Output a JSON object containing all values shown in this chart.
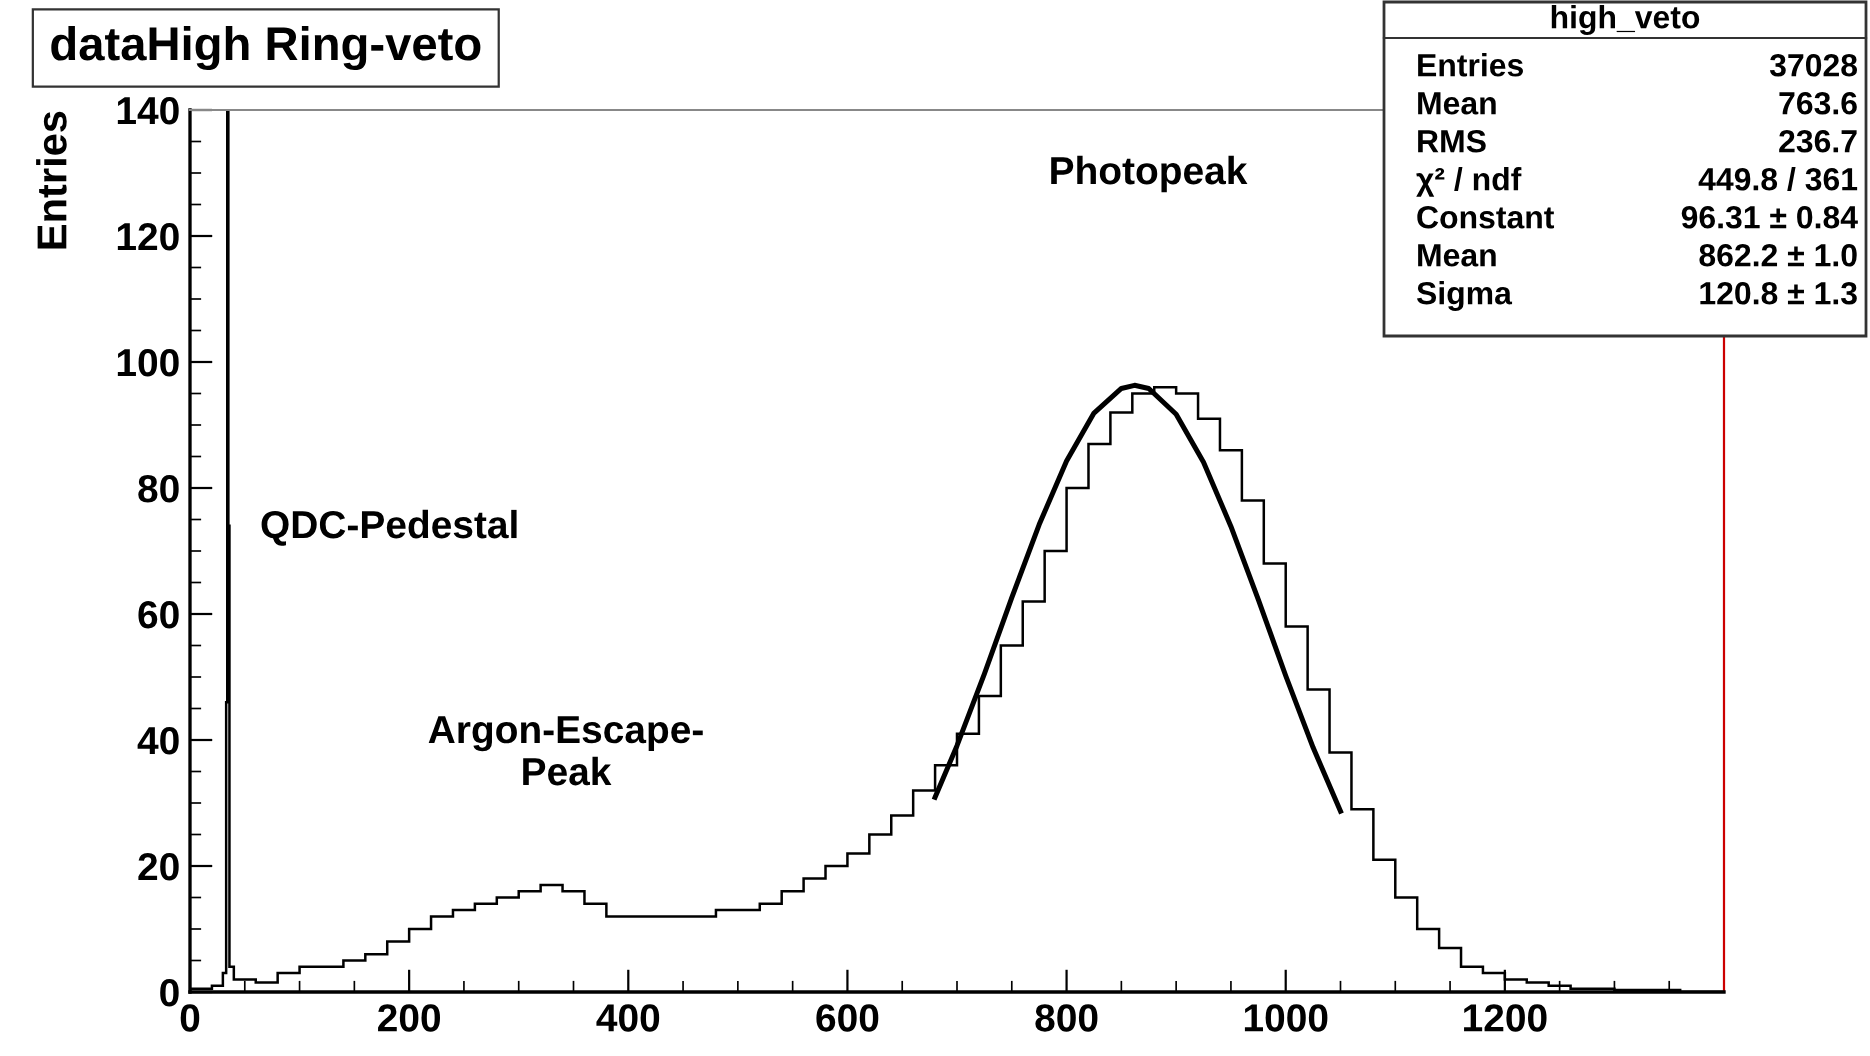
{
  "chart_data": {
    "type": "histogram",
    "title": "dataHigh Ring-veto",
    "ylabel": "Entries",
    "series": [
      {
        "color": "#000000",
        "bins": [
          0,
          20,
          30,
          33,
          34,
          35,
          36,
          40,
          60,
          80,
          100,
          120,
          140,
          160,
          180,
          200,
          220,
          240,
          260,
          280,
          300,
          320,
          340,
          360,
          380,
          400,
          420,
          440,
          460,
          480,
          500,
          520,
          540,
          560,
          580,
          600,
          620,
          640,
          660,
          680,
          700,
          720,
          740,
          760,
          780,
          800,
          820,
          840,
          860,
          880,
          900,
          920,
          940,
          960,
          980,
          1000,
          1020,
          1040,
          1060,
          1080,
          1100,
          1120,
          1140,
          1160,
          1180,
          1200,
          1220,
          1240,
          1260,
          1280,
          1300,
          1320,
          1360,
          1400
        ],
        "values": [
          0.5,
          1,
          3,
          46,
          140,
          74,
          4,
          2,
          1.5,
          3,
          4,
          4,
          5,
          6,
          8,
          10,
          12,
          13,
          14,
          15,
          16,
          17,
          16,
          14,
          12,
          12,
          12,
          12,
          12,
          13,
          13,
          14,
          16,
          18,
          20,
          22,
          25,
          28,
          32,
          36,
          41,
          47,
          55,
          62,
          70,
          80,
          87,
          92,
          95,
          96,
          95,
          91,
          86,
          78,
          68,
          58,
          48,
          38,
          29,
          21,
          15,
          10,
          7,
          4,
          3,
          2,
          1.5,
          1,
          0.5,
          0.5,
          0.3,
          0.3,
          0
        ]
      },
      {
        "type": "line",
        "color": "#000000",
        "x": [
          680,
          700,
          725,
          750,
          775,
          800,
          825,
          850,
          862,
          875,
          900,
          925,
          950,
          975,
          1000,
          1025,
          1050
        ],
        "values": [
          30.9,
          39.1,
          50.5,
          62.6,
          74.2,
          84.3,
          91.9,
          95.8,
          96.3,
          95.8,
          91.7,
          84.1,
          73.9,
          62.3,
          50.2,
          38.8,
          28.7
        ]
      }
    ],
    "xlim": [
      0,
      1400
    ],
    "ylim": [
      0,
      140
    ],
    "xticks": [
      0,
      200,
      400,
      600,
      800,
      1000,
      1200
    ],
    "yticks": [
      0,
      20,
      40,
      60,
      80,
      100,
      120,
      140
    ],
    "grid": false,
    "annotations": [
      "QDC-Pedestal",
      "Argon-Escape-\nPeak",
      "Photopeak",
      "high_veto",
      "Entries\t37028",
      "Mean\t763.6",
      "RMS\t236.7",
      "χ² / ndf\t449.8 / 361",
      "Constant\t96.31 ± 0.84",
      "Mean\t862.2 ± 1.0",
      "Sigma\t120.8 ± 1.3"
    ]
  }
}
